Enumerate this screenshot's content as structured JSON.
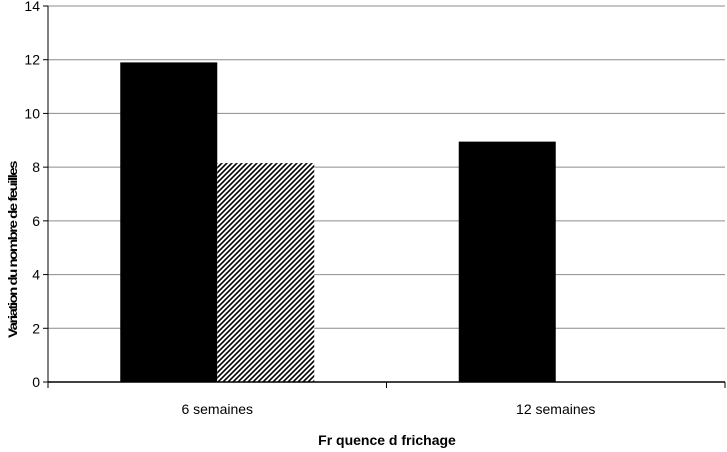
{
  "chart_data": {
    "type": "bar",
    "title": "",
    "xlabel": "Fr quence d frichage",
    "ylabel": "Variation du nombre de feuilles",
    "categories": [
      "6 semaines",
      "12 semaines"
    ],
    "series": [
      {
        "values": [
          11.9,
          8.95
        ],
        "color": "#000000",
        "pattern": "solid"
      },
      {
        "values": [
          8.15,
          0
        ],
        "color": "#000000",
        "pattern": "diagonal-hatch"
      }
    ],
    "ylim": [
      0,
      14
    ],
    "yticks": [
      0,
      2,
      4,
      6,
      8,
      10,
      12,
      14
    ],
    "grid": true,
    "legend": "none"
  }
}
